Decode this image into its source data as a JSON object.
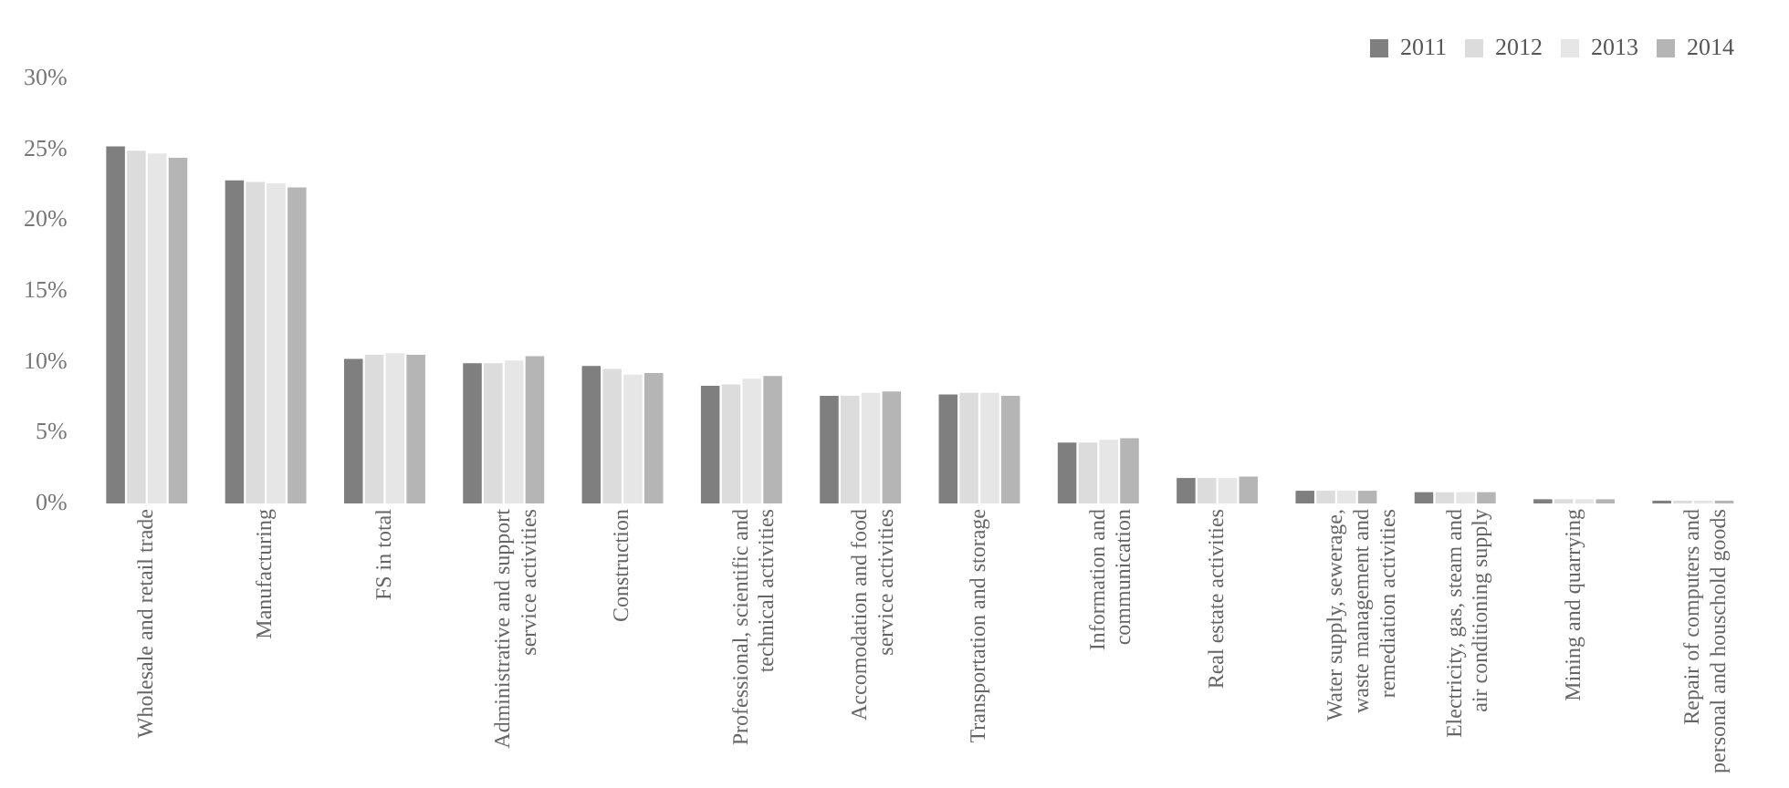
{
  "chart_data": {
    "type": "bar",
    "categories": [
      "Wholesale and retail trade",
      "Manufacturing",
      "FS in total",
      "Administrative and support service activities",
      "Construction",
      "Professional, scientific and technical activities",
      "Accomodation and food service activities",
      "Transportation and storage",
      "Information and communication",
      "Real estate activities",
      "Water supply, sewerage, waste management and remediation activities",
      "Electricity, gas, steam and air conditioning supply",
      "Mining and quarrying",
      "Repair of computers and personal and houschold goods"
    ],
    "series": [
      {
        "name": "2011",
        "color": "#7f7f7f",
        "values": [
          25.2,
          22.8,
          10.2,
          9.9,
          9.7,
          8.3,
          7.6,
          7.7,
          4.3,
          1.8,
          0.9,
          0.8,
          0.3,
          0.2
        ]
      },
      {
        "name": "2012",
        "color": "#dcdcdc",
        "values": [
          24.9,
          22.7,
          10.5,
          9.9,
          9.5,
          8.4,
          7.6,
          7.8,
          4.3,
          1.8,
          0.9,
          0.8,
          0.3,
          0.2
        ]
      },
      {
        "name": "2013",
        "color": "#e6e6e6",
        "values": [
          24.7,
          22.6,
          10.6,
          10.1,
          9.1,
          8.8,
          7.8,
          7.8,
          4.5,
          1.8,
          0.9,
          0.8,
          0.3,
          0.2
        ]
      },
      {
        "name": "2014",
        "color": "#b5b5b5",
        "values": [
          24.4,
          22.3,
          10.5,
          10.4,
          9.2,
          9.0,
          7.9,
          7.6,
          4.6,
          1.9,
          0.9,
          0.8,
          0.3,
          0.2
        ]
      }
    ],
    "ylim": [
      0,
      30
    ],
    "yticks": [
      {
        "value": 0,
        "label": "0%"
      },
      {
        "value": 5,
        "label": "5%"
      },
      {
        "value": 10,
        "label": "10%"
      },
      {
        "value": 15,
        "label": "15%"
      },
      {
        "value": 20,
        "label": "20%"
      },
      {
        "value": 25,
        "label": "25%"
      },
      {
        "value": 30,
        "label": "30%"
      }
    ],
    "grid": false,
    "legend": "top right"
  }
}
